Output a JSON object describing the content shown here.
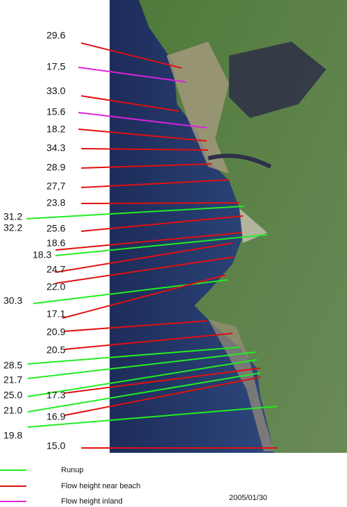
{
  "labels": [
    "29.6",
    "17.5",
    "33.0",
    "15.6",
    "18.2",
    "34.3",
    "28.9",
    "27,7",
    "23.8",
    "31.2",
    "32.2",
    "25.6",
    "18.6",
    "18.3",
    "24.7",
    "22.0",
    "30.3",
    "17.1",
    "20.9",
    "20.5",
    "28.5",
    "21.7",
    "25.0",
    "17.3",
    "21.0",
    "16.9",
    "19.8",
    "15.0"
  ],
  "legend": [
    {
      "label": "Runup",
      "color": "#22ee22"
    },
    {
      "label": "Flow height near beach",
      "color": "#e01010"
    },
    {
      "label": "Flow height inland",
      "color": "#dd22dd"
    }
  ],
  "date": "2005/01/30"
}
